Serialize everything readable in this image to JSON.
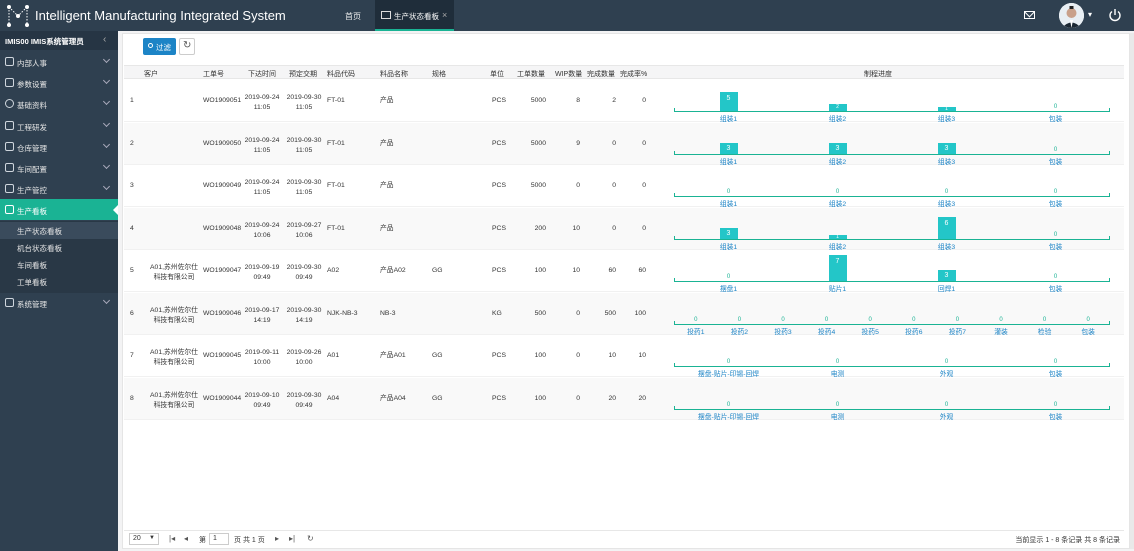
{
  "app": {
    "title": "Intelligent Manufacturing Integrated System"
  },
  "topnav": {
    "home": "首页",
    "active_tab": "生产状态看板",
    "close": "×"
  },
  "sidebar": {
    "user": "IMIS00 IMIS系统管理员",
    "items": [
      {
        "label": "内部人事"
      },
      {
        "label": "参数设置"
      },
      {
        "label": "基础资料"
      },
      {
        "label": "工程研发"
      },
      {
        "label": "仓库管理"
      },
      {
        "label": "车间配置"
      },
      {
        "label": "生产管控"
      },
      {
        "label": "生产看板"
      },
      {
        "label": "系统管理"
      }
    ],
    "subitems": [
      {
        "label": "生产状态看板"
      },
      {
        "label": "机台状态看板"
      },
      {
        "label": "车间看板"
      },
      {
        "label": "工单看板"
      }
    ]
  },
  "toolbar": {
    "filter": "过滤",
    "refresh": "↻"
  },
  "table": {
    "headers": [
      "客户",
      "工单号",
      "下达时间",
      "预定交期",
      "料品代码",
      "料品名称",
      "规格",
      "单位",
      "工单数量",
      "WIP数量",
      "完成数量",
      "完成率%",
      "制程进度"
    ],
    "rows": [
      {
        "no": "1",
        "customer": [
          "",
          ""
        ],
        "order": "WO1909051",
        "issue": [
          "2019-09-24",
          "11:05"
        ],
        "due": [
          "2019-09-30",
          "11:05"
        ],
        "code": "FT-01",
        "name": "产品",
        "spec": "",
        "unit": "PCS",
        "qty": "5000",
        "wip": "8",
        "done": "2",
        "rate": "0",
        "stages": [
          {
            "name": "组装1",
            "val": "5"
          },
          {
            "name": "组装2",
            "val": "2"
          },
          {
            "name": "组装3",
            "val": "1"
          },
          {
            "name": "包装",
            "val": "0"
          }
        ]
      },
      {
        "no": "2",
        "customer": [
          "",
          ""
        ],
        "order": "WO1909050",
        "issue": [
          "2019-09-24",
          "11:05"
        ],
        "due": [
          "2019-09-30",
          "11:05"
        ],
        "code": "FT-01",
        "name": "产品",
        "spec": "",
        "unit": "PCS",
        "qty": "5000",
        "wip": "9",
        "done": "0",
        "rate": "0",
        "stages": [
          {
            "name": "组装1",
            "val": "3"
          },
          {
            "name": "组装2",
            "val": "3"
          },
          {
            "name": "组装3",
            "val": "3"
          },
          {
            "name": "包装",
            "val": "0"
          }
        ]
      },
      {
        "no": "3",
        "customer": [
          "",
          ""
        ],
        "order": "WO1909049",
        "issue": [
          "2019-09-24",
          "11:05"
        ],
        "due": [
          "2019-09-30",
          "11:05"
        ],
        "code": "FT-01",
        "name": "产品",
        "spec": "",
        "unit": "PCS",
        "qty": "5000",
        "wip": "0",
        "done": "0",
        "rate": "0",
        "stages": [
          {
            "name": "组装1",
            "val": "0"
          },
          {
            "name": "组装2",
            "val": "0"
          },
          {
            "name": "组装3",
            "val": "0"
          },
          {
            "name": "包装",
            "val": "0"
          }
        ]
      },
      {
        "no": "4",
        "customer": [
          "",
          ""
        ],
        "order": "WO1909048",
        "issue": [
          "2019-09-24",
          "10:06"
        ],
        "due": [
          "2019-09-27",
          "10:06"
        ],
        "code": "FT-01",
        "name": "产品",
        "spec": "",
        "unit": "PCS",
        "qty": "200",
        "wip": "10",
        "done": "0",
        "rate": "0",
        "stages": [
          {
            "name": "组装1",
            "val": "3"
          },
          {
            "name": "组装2",
            "val": "1"
          },
          {
            "name": "组装3",
            "val": "6"
          },
          {
            "name": "包装",
            "val": "0"
          }
        ]
      },
      {
        "no": "5",
        "customer": [
          "A01,苏州佐尔仕",
          "科技有限公司"
        ],
        "order": "WO1909047",
        "issue": [
          "2019-09-19",
          "09:49"
        ],
        "due": [
          "2019-09-30",
          "09:49"
        ],
        "code": "A02",
        "name": "产品A02",
        "spec": "GG",
        "unit": "PCS",
        "qty": "100",
        "wip": "10",
        "done": "60",
        "rate": "60",
        "stages": [
          {
            "name": "摆盘1",
            "val": "0"
          },
          {
            "name": "贴片1",
            "val": "7"
          },
          {
            "name": "回焊1",
            "val": "3"
          },
          {
            "name": "包装",
            "val": "0"
          }
        ]
      },
      {
        "no": "6",
        "customer": [
          "A01,苏州佐尔仕",
          "科技有限公司"
        ],
        "order": "WO1909046",
        "issue": [
          "2019-09-17",
          "14:19"
        ],
        "due": [
          "2019-09-30",
          "14:19"
        ],
        "code": "NJK-NB-3",
        "name": "NB-3",
        "spec": "",
        "unit": "KG",
        "qty": "500",
        "wip": "0",
        "done": "500",
        "rate": "100",
        "stages": [
          {
            "name": "投药1",
            "val": "0"
          },
          {
            "name": "投药2",
            "val": "0"
          },
          {
            "name": "投药3",
            "val": "0"
          },
          {
            "name": "投药4",
            "val": "0"
          },
          {
            "name": "投药5",
            "val": "0"
          },
          {
            "name": "投药6",
            "val": "0"
          },
          {
            "name": "投药7",
            "val": "0"
          },
          {
            "name": "灌装",
            "val": "0"
          },
          {
            "name": "检验",
            "val": "0"
          },
          {
            "name": "包装",
            "val": "0"
          }
        ]
      },
      {
        "no": "7",
        "customer": [
          "A01,苏州佐尔仕",
          "科技有限公司"
        ],
        "order": "WO1909045",
        "issue": [
          "2019-09-11",
          "10:00"
        ],
        "due": [
          "2019-09-26",
          "10:00"
        ],
        "code": "A01",
        "name": "产品A01",
        "spec": "GG",
        "unit": "PCS",
        "qty": "100",
        "wip": "0",
        "done": "10",
        "rate": "10",
        "stages": [
          {
            "name": "摆盘-贴片-印锡-回焊",
            "val": "0"
          },
          {
            "name": "电测",
            "val": "0"
          },
          {
            "name": "外观",
            "val": "0"
          },
          {
            "name": "包装",
            "val": "0"
          }
        ]
      },
      {
        "no": "8",
        "customer": [
          "A01,苏州佐尔仕",
          "科技有限公司"
        ],
        "order": "WO1909044",
        "issue": [
          "2019-09-10",
          "09:49"
        ],
        "due": [
          "2019-09-30",
          "09:49"
        ],
        "code": "A04",
        "name": "产品A04",
        "spec": "GG",
        "unit": "PCS",
        "qty": "100",
        "wip": "0",
        "done": "20",
        "rate": "20",
        "stages": [
          {
            "name": "摆盘-贴片-印锡-回焊",
            "val": "0"
          },
          {
            "name": "电测",
            "val": "0"
          },
          {
            "name": "外观",
            "val": "0"
          },
          {
            "name": "包装",
            "val": "0"
          }
        ]
      }
    ]
  },
  "pager": {
    "page_size": "20",
    "page_prefix": "第",
    "page_value": "1",
    "page_suffix": "页 共 1 页",
    "info": "当前显示 1 - 8 条记录 共 8 条记录"
  },
  "colors": {
    "header_bg": "#2f4050",
    "accent": "#1ab394",
    "bar": "#23c6c8",
    "stage_label": "#1c84c6"
  }
}
